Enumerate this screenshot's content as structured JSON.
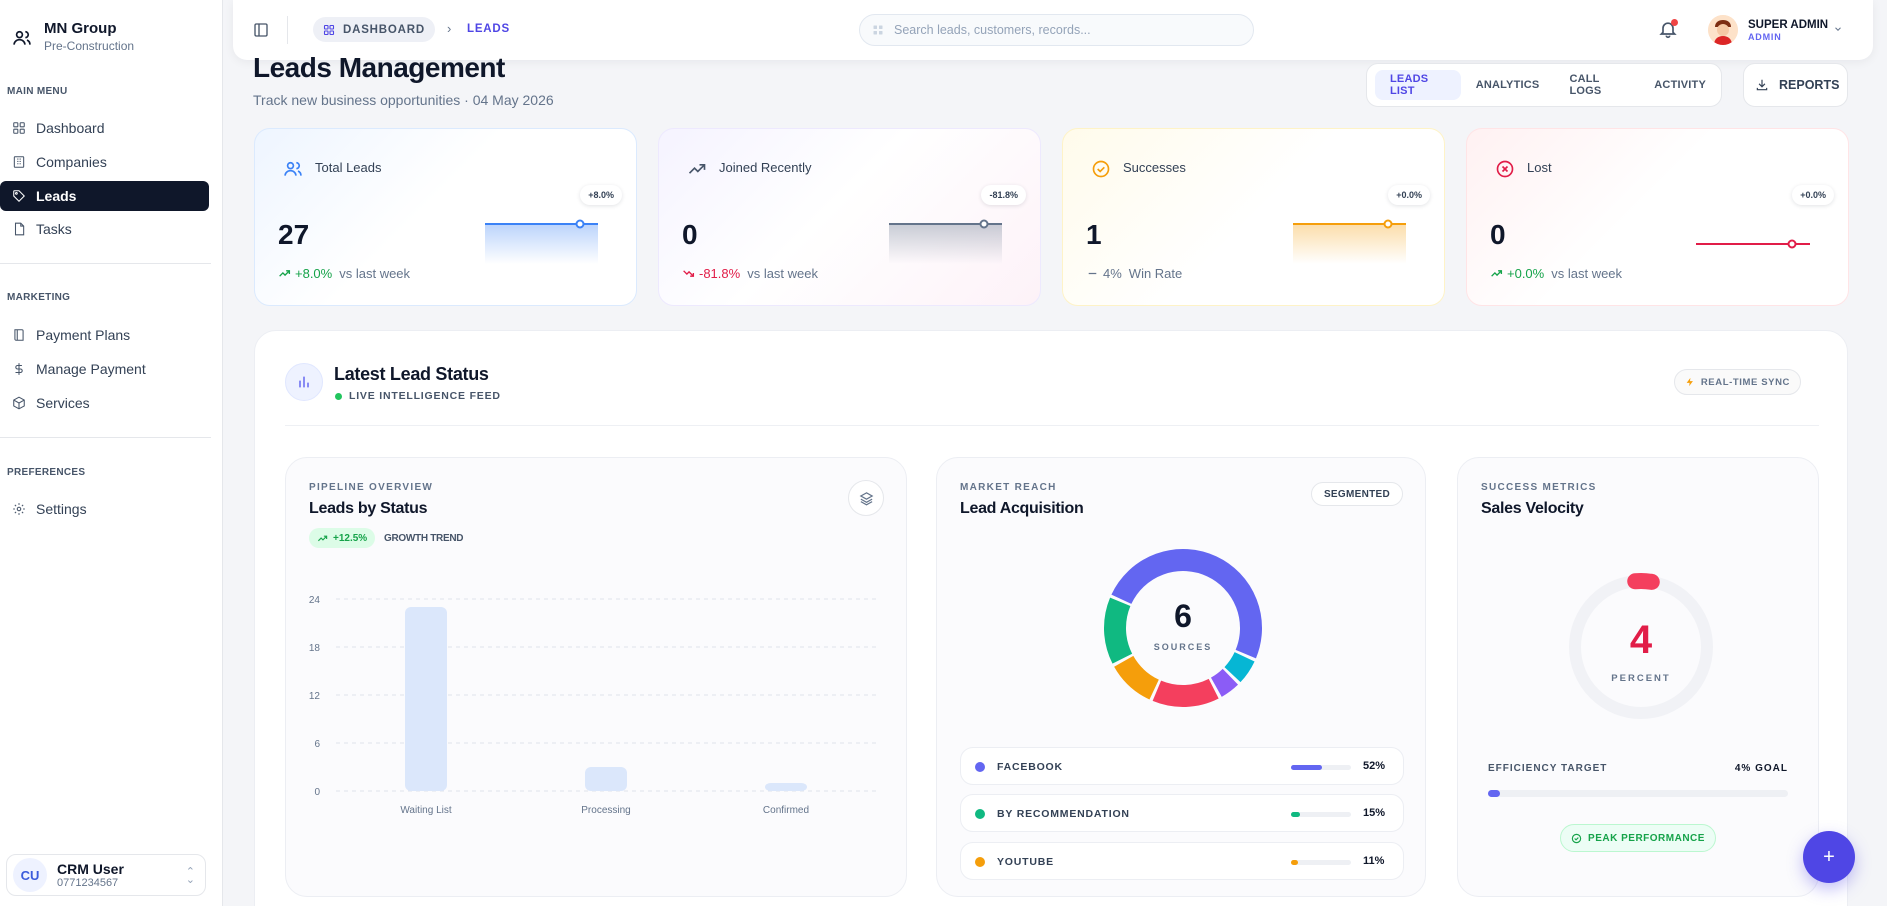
{
  "org": {
    "name": "MN Group",
    "subtitle": "Pre-Construction"
  },
  "sidebar": {
    "sections": [
      {
        "label": "MAIN MENU",
        "items": [
          {
            "label": "Dashboard",
            "icon": "grid-icon"
          },
          {
            "label": "Companies",
            "icon": "building-icon"
          },
          {
            "label": "Leads",
            "icon": "tag-icon",
            "active": true
          },
          {
            "label": "Tasks",
            "icon": "file-icon"
          }
        ]
      },
      {
        "label": "MARKETING",
        "items": [
          {
            "label": "Payment Plans",
            "icon": "book-icon"
          },
          {
            "label": "Manage Payment",
            "icon": "dollar-icon"
          },
          {
            "label": "Services",
            "icon": "box-icon"
          }
        ]
      },
      {
        "label": "PREFERENCES",
        "items": [
          {
            "label": "Settings",
            "icon": "gear-icon"
          }
        ]
      }
    ],
    "user": {
      "initials": "CU",
      "name": "CRM User",
      "phone": "0771234567"
    }
  },
  "topbar": {
    "breadcrumb": {
      "root": "DASHBOARD",
      "current": "LEADS"
    },
    "search_placeholder": "Search leads, customers, records...",
    "admin": {
      "name": "SUPER ADMIN",
      "role": "ADMIN"
    }
  },
  "header": {
    "title": "Leads Management",
    "subtitle": "Track new business opportunities · 04 May 2026",
    "tabs": [
      "LEADS LIST",
      "ANALYTICS",
      "CALL LOGS",
      "ACTIVITY"
    ],
    "reports_label": "REPORTS"
  },
  "stats": [
    {
      "label": "Total Leads",
      "value": "27",
      "trend": "+8.0%",
      "trend_note": "vs last week",
      "badge": "+8.0%",
      "color": "#3b82f6",
      "trend_color": "#16a34a"
    },
    {
      "label": "Joined Recently",
      "value": "0",
      "trend": "-81.8%",
      "trend_note": "vs last week",
      "badge": "-81.8%",
      "color": "#64748b",
      "trend_color": "#e11d48"
    },
    {
      "label": "Successes",
      "value": "1",
      "trend": "4%",
      "trend_note": "Win Rate",
      "badge": "+0.0%",
      "color": "#f59e0b",
      "trend_color": "#64748b"
    },
    {
      "label": "Lost",
      "value": "0",
      "trend": "+0.0%",
      "trend_note": "vs last week",
      "badge": "+0.0%",
      "color": "#e11d48",
      "trend_color": "#16a34a"
    }
  ],
  "panel": {
    "title": "Latest Lead Status",
    "live_label": "LIVE INTELLIGENCE FEED",
    "sync_label": "REAL-TIME SYNC"
  },
  "pipeline": {
    "kicker": "PIPELINE OVERVIEW",
    "title": "Leads by Status",
    "growth": "+12.5%",
    "growth_label": "GROWTH TREND"
  },
  "chart_data": {
    "type": "bar",
    "categories": [
      "Waiting List",
      "Processing",
      "Confirmed"
    ],
    "values": [
      23,
      3,
      1
    ],
    "ylim": [
      0,
      24
    ],
    "yticks": [
      0,
      6,
      12,
      18,
      24
    ],
    "grid": true,
    "color": "#dbe7fb"
  },
  "acquisition": {
    "kicker": "MARKET REACH",
    "title": "Lead Acquisition",
    "segmented_label": "SEGMENTED",
    "total": "6",
    "total_label": "SOURCES",
    "sources": [
      {
        "name": "FACEBOOK",
        "pct": 52,
        "pct_label": "52%",
        "color": "#6366f1"
      },
      {
        "name": "BY RECOMMENDATION",
        "pct": 15,
        "pct_label": "15%",
        "color": "#10b981"
      },
      {
        "name": "YOUTUBE",
        "pct": 11,
        "pct_label": "11%",
        "color": "#f59e0b"
      }
    ],
    "donut_segments": [
      {
        "value": 52,
        "color": "#6366f1"
      },
      {
        "value": 6,
        "color": "#06b6d4"
      },
      {
        "value": 5,
        "color": "#8b5cf6"
      },
      {
        "value": 15,
        "color": "#f43f5e"
      },
      {
        "value": 11,
        "color": "#f59e0b"
      },
      {
        "value": 15,
        "color": "#10b981"
      }
    ]
  },
  "velocity": {
    "kicker": "SUCCESS METRICS",
    "title": "Sales Velocity",
    "value": "4",
    "value_label": "PERCENT",
    "percent": 4,
    "efficiency_label": "EFFICIENCY TARGET",
    "goal_label": "4% GOAL",
    "peak_label": "PEAK PERFORMANCE"
  },
  "fab_label": "+"
}
